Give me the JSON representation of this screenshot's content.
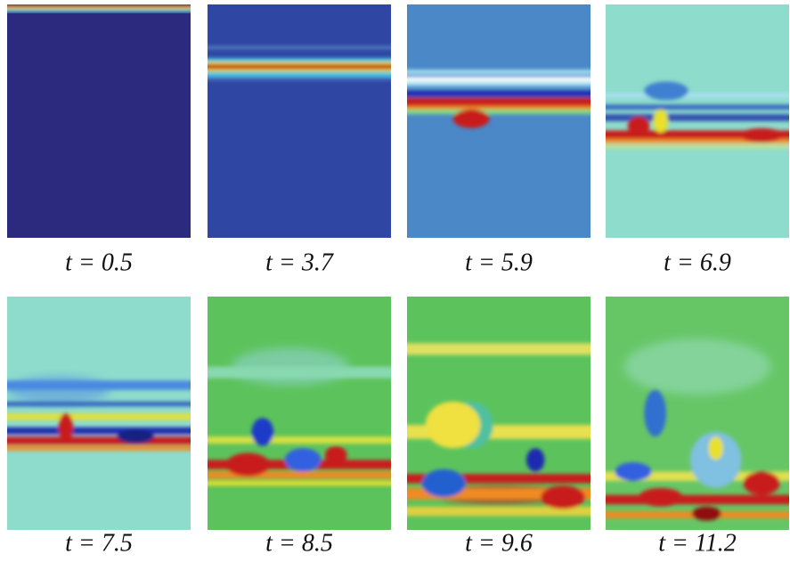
{
  "panels": [
    {
      "caption": "t = 0.5"
    },
    {
      "caption": "t = 3.7"
    },
    {
      "caption": "t = 5.9"
    },
    {
      "caption": "t = 6.9"
    },
    {
      "caption": "t = 7.5"
    },
    {
      "caption": "t = 8.5"
    },
    {
      "caption": "t = 9.6"
    },
    {
      "caption": "t = 11.2"
    }
  ]
}
